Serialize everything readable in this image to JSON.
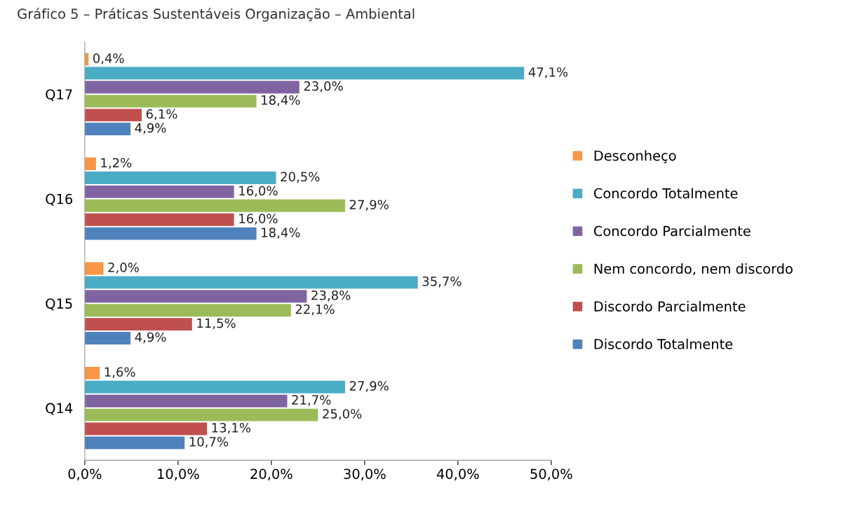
{
  "chart_data": {
    "type": "bar",
    "orientation": "horizontal",
    "title": "Gráfico 5 – Práticas Sustentáveis Organização – Ambiental",
    "categories": [
      "Q17",
      "Q16",
      "Q15",
      "Q14"
    ],
    "series": [
      {
        "name": "Desconheço",
        "color": "#f79646",
        "values": [
          0.4,
          1.2,
          2.0,
          1.6
        ],
        "value_labels": [
          "0,4%",
          "1,2%",
          "2,0%",
          "1,6%"
        ]
      },
      {
        "name": "Concordo Totalmente",
        "color": "#4bacc6",
        "values": [
          47.1,
          20.5,
          35.7,
          27.9
        ],
        "value_labels": [
          "47,1%",
          "20,5%",
          "35,7%",
          "27,9%"
        ]
      },
      {
        "name": "Concordo Parcialmente",
        "color": "#8064a2",
        "values": [
          23.0,
          16.0,
          23.8,
          21.7
        ],
        "value_labels": [
          "23,0%",
          "16,0%",
          "23,8%",
          "21,7%"
        ]
      },
      {
        "name": "Nem concordo, nem discordo",
        "color": "#9bbb59",
        "values": [
          18.4,
          27.9,
          22.1,
          25.0
        ],
        "value_labels": [
          "18,4%",
          "27,9%",
          "22,1%",
          "25,0%"
        ]
      },
      {
        "name": "Discordo Parcialmente",
        "color": "#c0504d",
        "values": [
          6.1,
          16.0,
          11.5,
          13.1
        ],
        "value_labels": [
          "6,1%",
          "16,0%",
          "11,5%",
          "13,1%"
        ]
      },
      {
        "name": "Discordo Totalmente",
        "color": "#4f81bd",
        "values": [
          4.9,
          18.4,
          4.9,
          10.7
        ],
        "value_labels": [
          "4,9%",
          "18,4%",
          "4,9%",
          "10,7%"
        ]
      }
    ],
    "xlim": [
      0,
      50
    ],
    "xticks": [
      {
        "value": 0,
        "label": "0,0%"
      },
      {
        "value": 10,
        "label": "10,0%"
      },
      {
        "value": 20,
        "label": "20,0%"
      },
      {
        "value": 30,
        "label": "30,0%"
      },
      {
        "value": 40,
        "label": "40,0%"
      },
      {
        "value": 50,
        "label": "50,0%"
      }
    ],
    "legend": "right",
    "grid": false
  }
}
